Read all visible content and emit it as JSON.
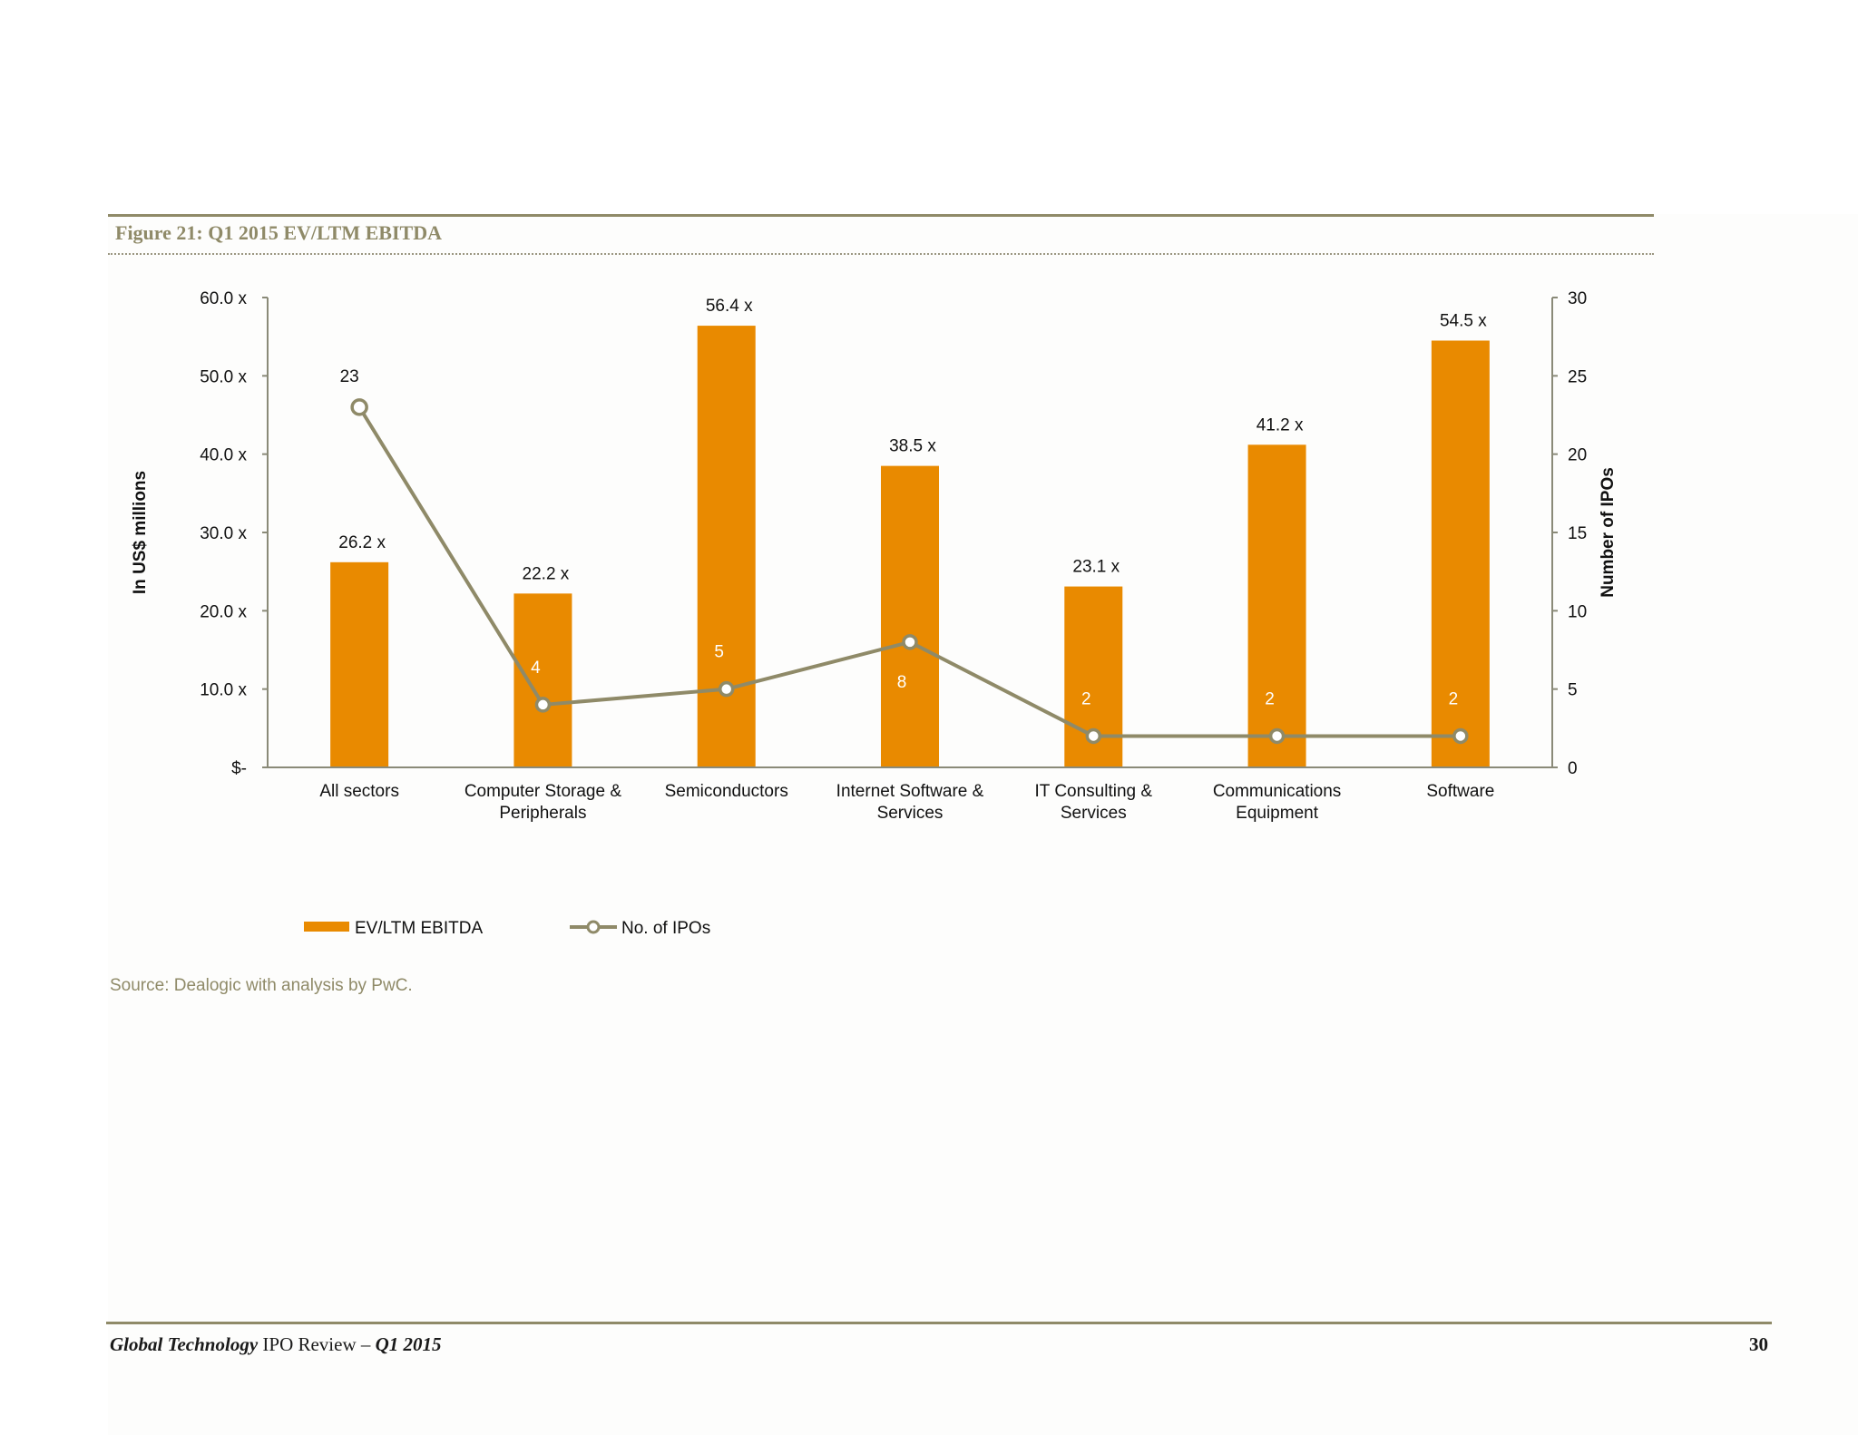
{
  "figure_title": "Figure 21: Q1 2015 EV/LTM EBITDA",
  "source_note": "Source: Dealogic with analysis by PwC.",
  "footer": {
    "title_italic": "Global Technology",
    "title_mid": " IPO Review – ",
    "period_italic": "Q1 2015",
    "page_number": "30"
  },
  "colors": {
    "bar": "#e98a00",
    "line": "#8f8a68",
    "accent_text": "#8f8a68"
  },
  "chart_data": {
    "type": "bar",
    "categories": [
      [
        "All sectors"
      ],
      [
        "Computer Storage &",
        "Peripherals"
      ],
      [
        "Semiconductors"
      ],
      [
        "Internet Software &",
        "Services"
      ],
      [
        "IT Consulting &",
        "Services"
      ],
      [
        "Communications",
        "Equipment"
      ],
      [
        "Software"
      ]
    ],
    "series": [
      {
        "name": "EV/LTM EBITDA",
        "type": "bar",
        "axis": "left",
        "values": [
          26.2,
          22.2,
          56.4,
          38.5,
          23.1,
          41.2,
          54.5
        ],
        "labels": [
          "26.2 x",
          "22.2 x",
          "56.4 x",
          "38.5 x",
          "23.1 x",
          "41.2 x",
          "54.5 x"
        ]
      },
      {
        "name": "No. of IPOs",
        "type": "line",
        "axis": "right",
        "values": [
          23,
          4,
          5,
          8,
          2,
          2,
          2
        ],
        "labels": [
          "23",
          "4",
          "5",
          "8",
          "2",
          "2",
          "2"
        ]
      }
    ],
    "ylabel": "In US$ millions",
    "y2label": "Number of IPOs",
    "ylim": [
      0,
      60
    ],
    "y2lim": [
      0,
      30
    ],
    "y_ticks": [
      "$-",
      "10.0 x",
      "20.0 x",
      "30.0 x",
      "40.0 x",
      "50.0 x",
      "60.0 x"
    ],
    "y2_ticks": [
      "0",
      "5",
      "10",
      "15",
      "20",
      "25",
      "30"
    ],
    "grid": false,
    "legend_position": "bottom-left"
  }
}
